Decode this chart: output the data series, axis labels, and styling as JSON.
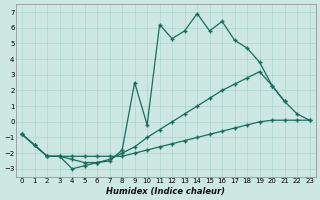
{
  "xlabel": "Humidex (Indice chaleur)",
  "background_color": "#cde8e2",
  "grid_color": "#aed4ce",
  "line_color": "#1a6b5e",
  "xlim": [
    -0.5,
    23.5
  ],
  "ylim": [
    -3.5,
    7.5
  ],
  "xticks": [
    0,
    1,
    2,
    3,
    4,
    5,
    6,
    7,
    8,
    9,
    10,
    11,
    12,
    13,
    14,
    15,
    16,
    17,
    18,
    19,
    20,
    21,
    22,
    23
  ],
  "yticks": [
    -3,
    -2,
    -1,
    0,
    1,
    2,
    3,
    4,
    5,
    6,
    7
  ],
  "line1_x": [
    0,
    1,
    2,
    3,
    4,
    5,
    6,
    7,
    8,
    9,
    10,
    11,
    12,
    13,
    14,
    15,
    16,
    17,
    18,
    19,
    20,
    21
  ],
  "line1_y": [
    -0.8,
    -1.5,
    -2.2,
    -2.2,
    -3.0,
    -2.8,
    -2.6,
    -2.5,
    -1.8,
    2.5,
    -0.2,
    6.2,
    5.3,
    5.8,
    6.9,
    5.8,
    6.4,
    5.2,
    4.7,
    3.8,
    2.3,
    1.3
  ],
  "line2_x": [
    0,
    1,
    2,
    3,
    4,
    5,
    6,
    7,
    8,
    9,
    10,
    11,
    12,
    13,
    14,
    15,
    16,
    17,
    18,
    19,
    20,
    21,
    22,
    23
  ],
  "line2_y": [
    -0.8,
    -1.5,
    -2.2,
    -2.2,
    -2.4,
    -2.6,
    -2.6,
    -2.4,
    -2.0,
    -1.6,
    -1.0,
    -0.5,
    0.0,
    0.5,
    1.0,
    1.5,
    2.0,
    2.4,
    2.8,
    3.2,
    2.3,
    1.3,
    0.5,
    0.1
  ],
  "line3_x": [
    0,
    1,
    2,
    3,
    4,
    5,
    6,
    7,
    8,
    9,
    10,
    11,
    12,
    13,
    14,
    15,
    16,
    17,
    18,
    19,
    20,
    21,
    22,
    23
  ],
  "line3_y": [
    -0.8,
    -1.5,
    -2.2,
    -2.2,
    -2.2,
    -2.2,
    -2.2,
    -2.2,
    -2.2,
    -2.0,
    -1.8,
    -1.6,
    -1.4,
    -1.2,
    -1.0,
    -0.8,
    -0.6,
    -0.4,
    -0.2,
    0.0,
    0.1,
    0.1,
    0.1,
    0.1
  ]
}
